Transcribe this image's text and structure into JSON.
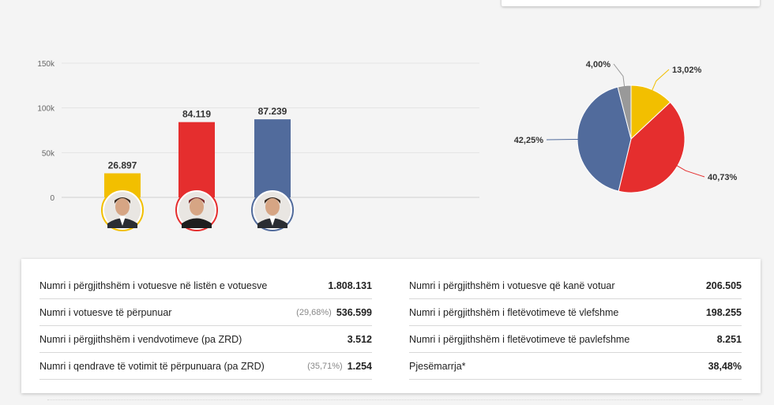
{
  "chart_data": [
    {
      "type": "bar",
      "categories": [
        "candidate-1",
        "candidate-2",
        "candidate-3"
      ],
      "values": [
        26897,
        84119,
        87239
      ],
      "value_labels": [
        "26.897",
        "84.119",
        "87.239"
      ],
      "colors": [
        "#f2bf00",
        "#e52e2e",
        "#516b9c"
      ],
      "ylim": [
        0,
        150000
      ],
      "yticks": [
        0,
        50000,
        100000,
        150000
      ],
      "ytick_labels": [
        "0",
        "50k",
        "100k",
        "150k"
      ],
      "grid": true
    },
    {
      "type": "pie",
      "slices": [
        {
          "label": "13,02%",
          "value": 13.02,
          "color": "#f2bf00"
        },
        {
          "label": "40,73%",
          "value": 40.73,
          "color": "#e52e2e"
        },
        {
          "label": "42,25%",
          "value": 42.25,
          "color": "#516b9c"
        },
        {
          "label": "4,00%",
          "value": 4.0,
          "color": "#999999"
        }
      ]
    }
  ],
  "stats": {
    "left": [
      {
        "label": "Numri i përgjithshëm i votuesve në listën e votuesve",
        "pct": "",
        "value": "1.808.131"
      },
      {
        "label": "Numri i votuesve të përpunuar",
        "pct": "(29,68%)",
        "value": "536.599"
      },
      {
        "label": "Numri i përgjithshëm i vendvotimeve (pa ZRD)",
        "pct": "",
        "value": "3.512"
      },
      {
        "label": "Numri i qendrave të votimit të përpunuara (pa ZRD)",
        "pct": "(35,71%)",
        "value": "1.254"
      }
    ],
    "right": [
      {
        "label": "Numri i përgjithshëm i votuesve që kanë votuar",
        "pct": "",
        "value": "206.505"
      },
      {
        "label": "Numri i përgjithshëm i fletëvotimeve të vlefshme",
        "pct": "",
        "value": "198.255"
      },
      {
        "label": "Numri i përgjithshëm i fletëvotimeve të pavlefshme",
        "pct": "",
        "value": "8.251"
      },
      {
        "label": "Pjesëmarrja*",
        "pct": "",
        "value": "38,48%"
      }
    ]
  }
}
